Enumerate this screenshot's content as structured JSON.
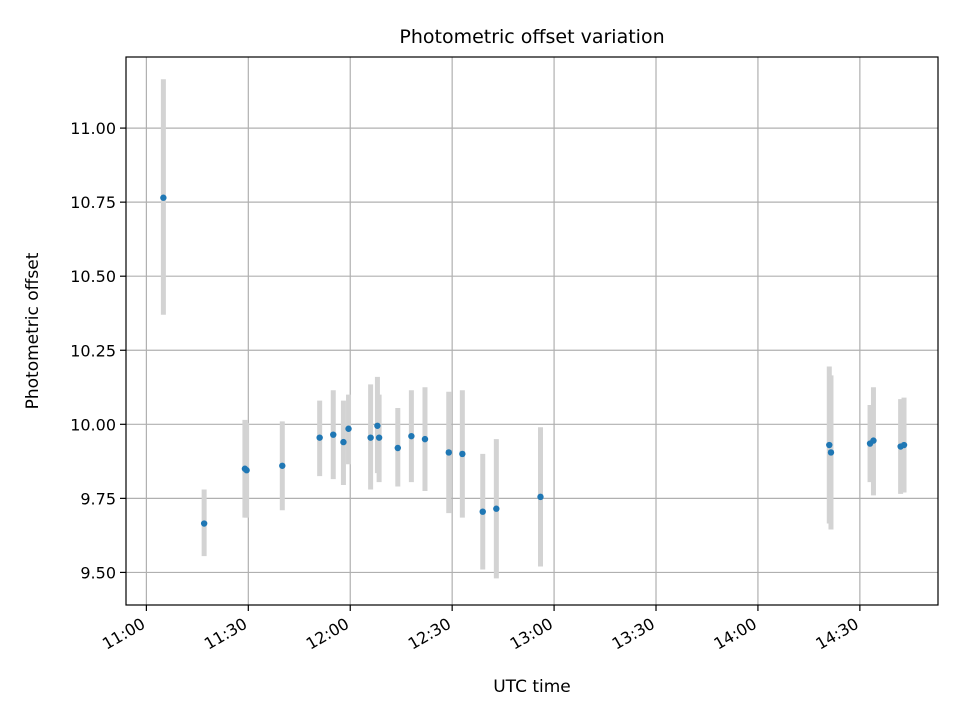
{
  "chart_data": {
    "type": "scatter",
    "title": "Photometric offset variation",
    "xlabel": "UTC time",
    "ylabel": "Photometric offset",
    "x_unit": "UTC HH:MM",
    "xlim": [
      "10:54",
      "14:53"
    ],
    "ylim": [
      9.39,
      11.24
    ],
    "grid": true,
    "x_ticks": [
      "11:00",
      "11:30",
      "12:00",
      "12:30",
      "13:00",
      "13:30",
      "14:00",
      "14:30"
    ],
    "y_ticks": [
      9.5,
      9.75,
      10.0,
      10.25,
      10.5,
      10.75,
      11.0
    ],
    "y_tick_labels": [
      "9.50",
      "9.75",
      "10.00",
      "10.25",
      "10.50",
      "10.75",
      "11.00"
    ],
    "marker_color": "#1f77b4",
    "errorbar_color": "#d3d3d3",
    "series": [
      {
        "points": [
          {
            "x": "11:05",
            "y": 10.765,
            "lo": 10.37,
            "hi": 11.165
          },
          {
            "x": "11:17",
            "y": 9.665,
            "lo": 9.555,
            "hi": 9.78
          },
          {
            "x": "11:29",
            "y": 9.85,
            "lo": 9.685,
            "hi": 10.015
          },
          {
            "x": "11:29:30",
            "y": 9.845,
            "lo": 9.685,
            "hi": 10.005
          },
          {
            "x": "11:40",
            "y": 9.86,
            "lo": 9.71,
            "hi": 10.01
          },
          {
            "x": "11:51",
            "y": 9.955,
            "lo": 9.825,
            "hi": 10.08
          },
          {
            "x": "11:55",
            "y": 9.965,
            "lo": 9.815,
            "hi": 10.115
          },
          {
            "x": "11:58",
            "y": 9.94,
            "lo": 9.795,
            "hi": 10.08
          },
          {
            "x": "11:59:30",
            "y": 9.985,
            "lo": 9.865,
            "hi": 10.1
          },
          {
            "x": "12:06",
            "y": 9.955,
            "lo": 9.78,
            "hi": 10.135
          },
          {
            "x": "12:08",
            "y": 9.995,
            "lo": 9.835,
            "hi": 10.16
          },
          {
            "x": "12:08:30",
            "y": 9.955,
            "lo": 9.805,
            "hi": 10.1
          },
          {
            "x": "12:14",
            "y": 9.92,
            "lo": 9.79,
            "hi": 10.055
          },
          {
            "x": "12:18",
            "y": 9.96,
            "lo": 9.805,
            "hi": 10.115
          },
          {
            "x": "12:22",
            "y": 9.95,
            "lo": 9.775,
            "hi": 10.125
          },
          {
            "x": "12:29",
            "y": 9.905,
            "lo": 9.7,
            "hi": 10.11
          },
          {
            "x": "12:33",
            "y": 9.9,
            "lo": 9.685,
            "hi": 10.115
          },
          {
            "x": "12:39",
            "y": 9.705,
            "lo": 9.51,
            "hi": 9.9
          },
          {
            "x": "12:43",
            "y": 9.715,
            "lo": 9.48,
            "hi": 9.95
          },
          {
            "x": "12:56",
            "y": 9.755,
            "lo": 9.52,
            "hi": 9.99
          },
          {
            "x": "14:21",
            "y": 9.93,
            "lo": 9.665,
            "hi": 10.195
          },
          {
            "x": "14:21:30",
            "y": 9.905,
            "lo": 9.645,
            "hi": 10.165
          },
          {
            "x": "14:33",
            "y": 9.935,
            "lo": 9.805,
            "hi": 10.065
          },
          {
            "x": "14:34",
            "y": 9.945,
            "lo": 9.76,
            "hi": 10.125
          },
          {
            "x": "14:42",
            "y": 9.925,
            "lo": 9.765,
            "hi": 10.085
          },
          {
            "x": "14:43",
            "y": 9.93,
            "lo": 9.77,
            "hi": 10.09
          }
        ]
      }
    ]
  }
}
